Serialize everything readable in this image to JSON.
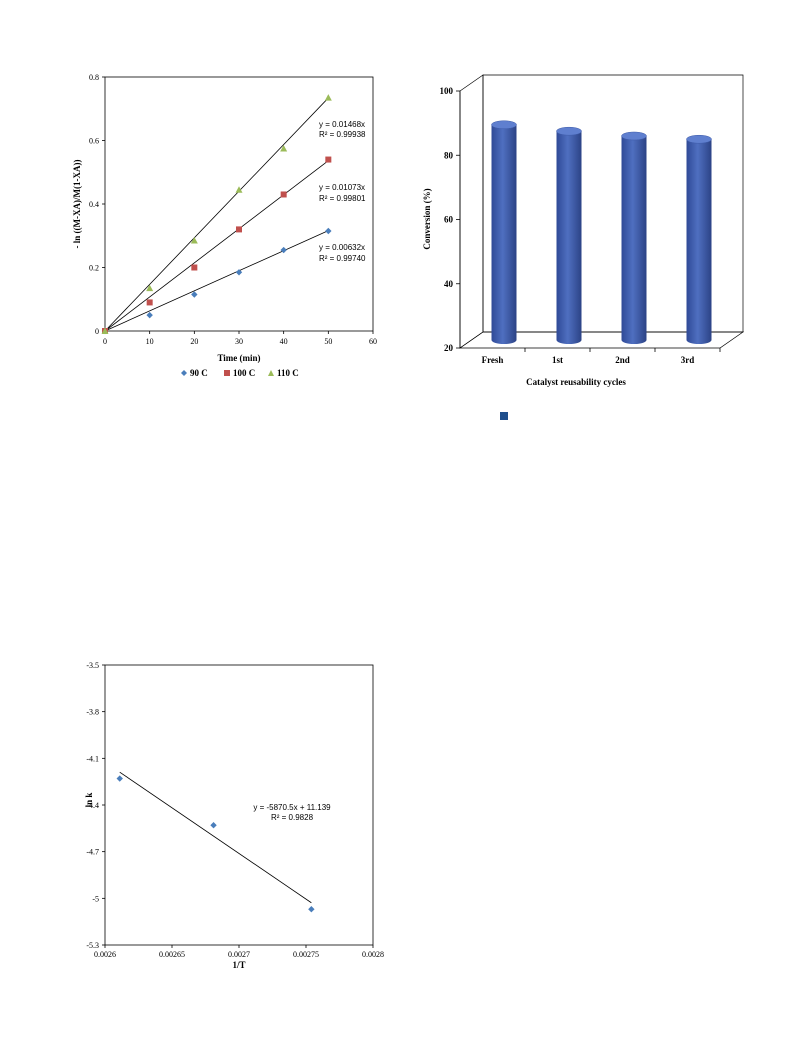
{
  "chart_data": [
    {
      "type": "scatter",
      "xlabel": "Time (min)",
      "ylabel": "- ln ((M-XA)/M(1-XA))",
      "xlim": [
        0,
        60
      ],
      "ylim": [
        0,
        0.8
      ],
      "xticks": [
        "0",
        "10",
        "20",
        "30",
        "40",
        "50",
        "60"
      ],
      "yticks": [
        "0",
        "0.2",
        "0.4",
        "0.6",
        "0.8"
      ],
      "legend": "bottom",
      "grid": false,
      "series": [
        {
          "name": "90 C",
          "marker": "diamond",
          "color": "#4a7ebb",
          "x": [
            0,
            10,
            20,
            30,
            40,
            50
          ],
          "y": [
            0,
            0.05,
            0.115,
            0.185,
            0.255,
            0.315
          ],
          "slope": 0.00632,
          "equation": "y = 0.00632x",
          "r2": "R² = 0.99740"
        },
        {
          "name": "100 C",
          "marker": "square",
          "color": "#c0504d",
          "x": [
            0,
            10,
            20,
            30,
            40,
            50
          ],
          "y": [
            0,
            0.09,
            0.2,
            0.32,
            0.43,
            0.54
          ],
          "slope": 0.01073,
          "equation": "y = 0.01073x",
          "r2": "R² = 0.99801"
        },
        {
          "name": "110 C",
          "marker": "triangle",
          "color": "#9bbb59",
          "x": [
            0,
            10,
            20,
            30,
            40,
            50
          ],
          "y": [
            0,
            0.135,
            0.285,
            0.445,
            0.575,
            0.735
          ],
          "slope": 0.01468,
          "equation": "y = 0.01468x",
          "r2": "R² = 0.99938"
        }
      ]
    },
    {
      "type": "bar",
      "style": "3d-cylinder",
      "xlabel": "Catalyst reusability cycles",
      "ylabel": "Conversion (%)",
      "ylim": [
        20,
        100
      ],
      "yticks": [
        "20",
        "40",
        "60",
        "80",
        "100"
      ],
      "categories": [
        "Fresh",
        "1st",
        "2nd",
        "3rd"
      ],
      "values": [
        87,
        85,
        83.5,
        82.5
      ],
      "color": "#4f6fc0",
      "legend_marker_color": "#1f4e8c",
      "grid": false
    },
    {
      "type": "scatter",
      "xlabel": "1/T",
      "ylabel": "ln k",
      "xlim": [
        0.0026,
        0.0028
      ],
      "ylim": [
        -5.3,
        -3.5
      ],
      "xticks": [
        "0.0026",
        "0.00265",
        "0.0027",
        "0.00275",
        "0.0028"
      ],
      "yticks": [
        "-3.5",
        "-3.8",
        "-4.1",
        "-4.4",
        "-4.7",
        "-5",
        "-5.3"
      ],
      "grid": false,
      "series": [
        {
          "marker": "diamond",
          "color": "#4a7ebb",
          "x": [
            0.002611,
            0.002681,
            0.002754
          ],
          "y": [
            -4.23,
            -4.53,
            -5.07
          ]
        }
      ],
      "trendline": {
        "slope": -5870.5,
        "intercept": 11.139,
        "x_from": 0.002611,
        "x_to": 0.002754
      },
      "equation": "y = -5870.5x + 11.139",
      "r2": "R² = 0.9828"
    }
  ]
}
